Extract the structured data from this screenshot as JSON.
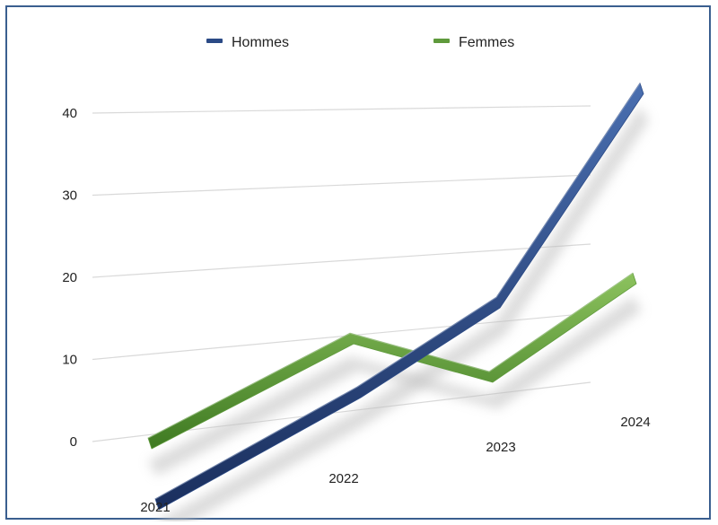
{
  "chart_data": {
    "type": "line",
    "title": "",
    "xlabel": "",
    "ylabel": "",
    "categories": [
      "2021",
      "2022",
      "2023",
      "2024"
    ],
    "ylim": [
      0,
      40
    ],
    "yticks": [
      0,
      10,
      20,
      30,
      40
    ],
    "grid": true,
    "legend_position": "top-center",
    "style": "3d",
    "series": [
      {
        "name": "Hommes",
        "values": [
          -4,
          5,
          11,
          41
        ],
        "color": "#2b4a86"
      },
      {
        "name": "Femmes",
        "values": [
          0,
          8,
          6,
          13
        ],
        "color": "#5f9a3c"
      }
    ]
  }
}
